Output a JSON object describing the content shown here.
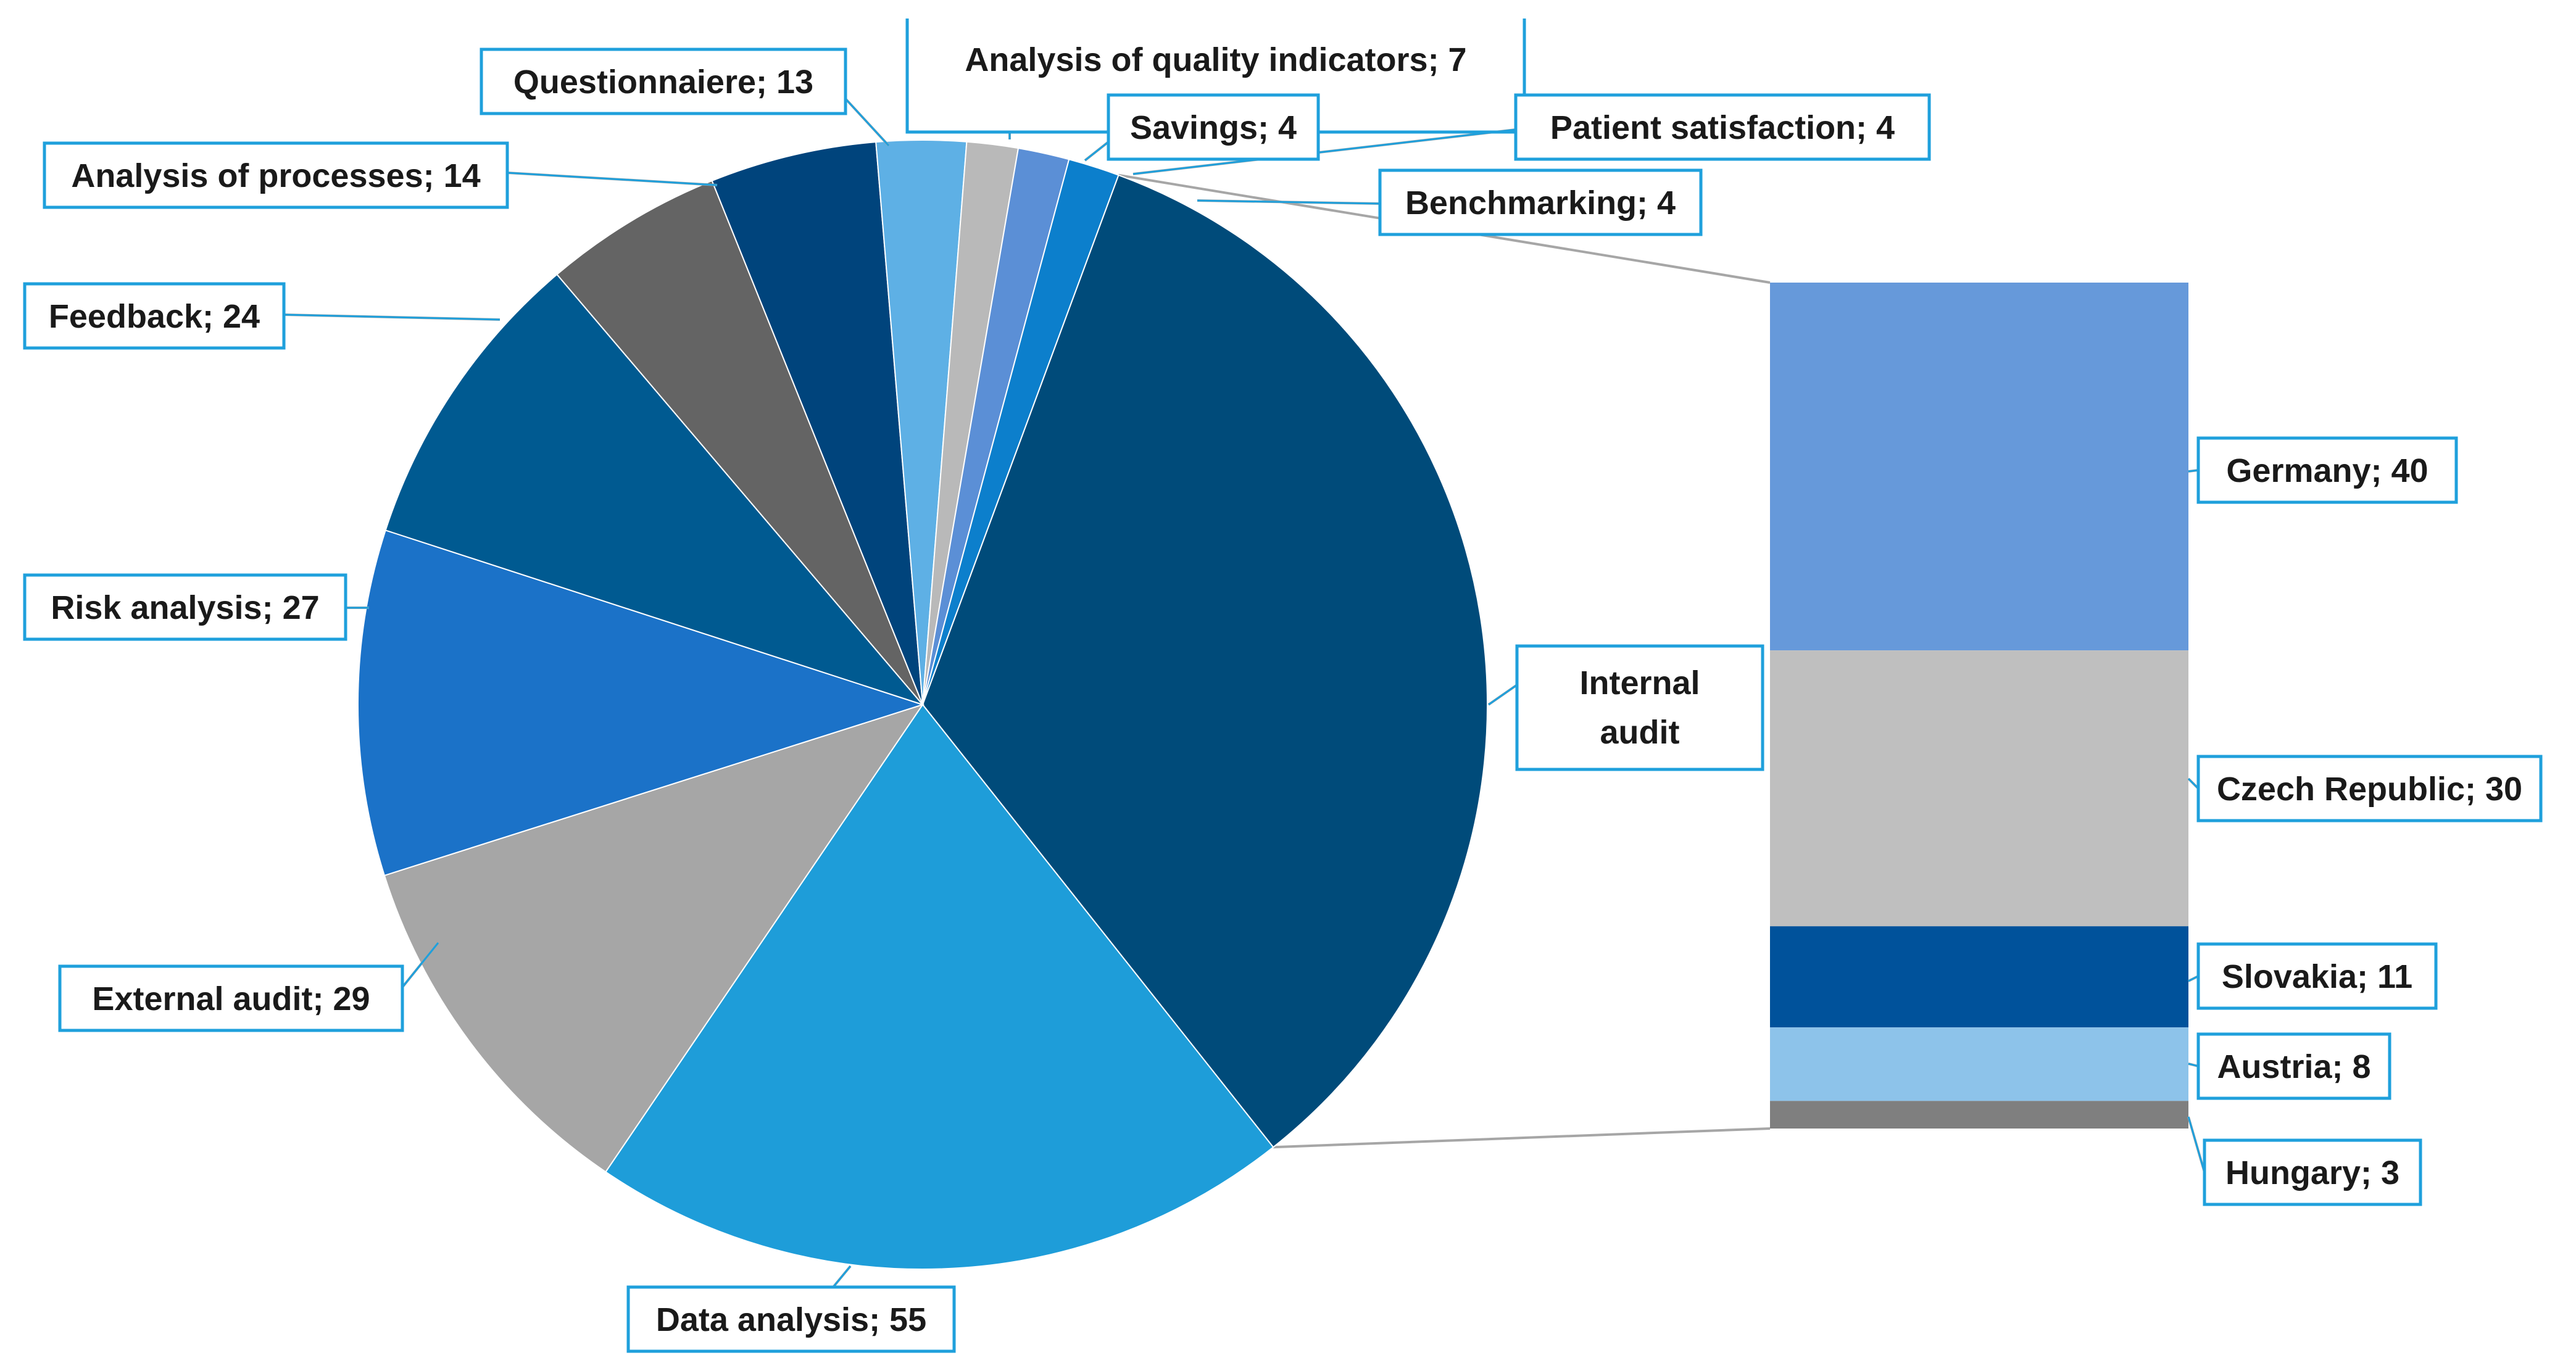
{
  "chart_data": {
    "type": "bar-of-pie",
    "title": "",
    "pie": {
      "slices": [
        {
          "label": "Internal audit",
          "value": 92,
          "color": "#004b7a"
        },
        {
          "label": "Data analysis",
          "value": 55,
          "color": "#1e9dd9"
        },
        {
          "label": "External audit",
          "value": 29,
          "color": "#a6a6a6"
        },
        {
          "label": "Risk analysis",
          "value": 27,
          "color": "#1b72c8"
        },
        {
          "label": "Feedback",
          "value": 24,
          "color": "#005a91"
        },
        {
          "label": "Analysis of processes",
          "value": 14,
          "color": "#646464"
        },
        {
          "label": "Questionnaiere",
          "value": 13,
          "color": "#00447c"
        },
        {
          "label": "Analysis of quality indicators",
          "value": 7,
          "color": "#5eb0e5"
        },
        {
          "label": "Savings",
          "value": 4,
          "color": "#b9b9b9"
        },
        {
          "label": "Patient satisfaction",
          "value": 4,
          "color": "#5b8fd6"
        },
        {
          "label": "Benchmarking",
          "value": 4,
          "color": "#0c7fcc"
        }
      ]
    },
    "bar": {
      "parent": "Internal audit",
      "segments": [
        {
          "label": "Germany",
          "value": 40,
          "color": "#6699da"
        },
        {
          "label": "Czech Republic",
          "value": 30,
          "color": "#bfbfbf"
        },
        {
          "label": "Slovakia",
          "value": 11,
          "color": "#00529b"
        },
        {
          "label": "Austria",
          "value": 8,
          "color": "#8dc3ea"
        },
        {
          "label": "Hungary",
          "value": 3,
          "color": "#7f7f7f"
        }
      ]
    }
  },
  "labels": {
    "pie": [
      "Internal audit",
      "Data analysis; 55",
      "External audit; 29",
      "Risk analysis; 27",
      "Feedback; 24",
      "Analysis of processes; 14",
      "Questionnaiere; 13",
      "Analysis of quality indicators; 7",
      "Savings; 4",
      "Patient satisfaction; 4",
      "Benchmarking; 4"
    ],
    "internal_audit_lines": [
      "Internal",
      "audit"
    ],
    "bar": [
      "Germany; 40",
      "Czech Republic; 30",
      "Slovakia; 11",
      "Austria; 8",
      "Hungary; 3"
    ]
  },
  "colors": {
    "callout_border": "#1fa0dc",
    "leader_line": "#a6a6a6",
    "connector_line": "#a6a6a6"
  }
}
